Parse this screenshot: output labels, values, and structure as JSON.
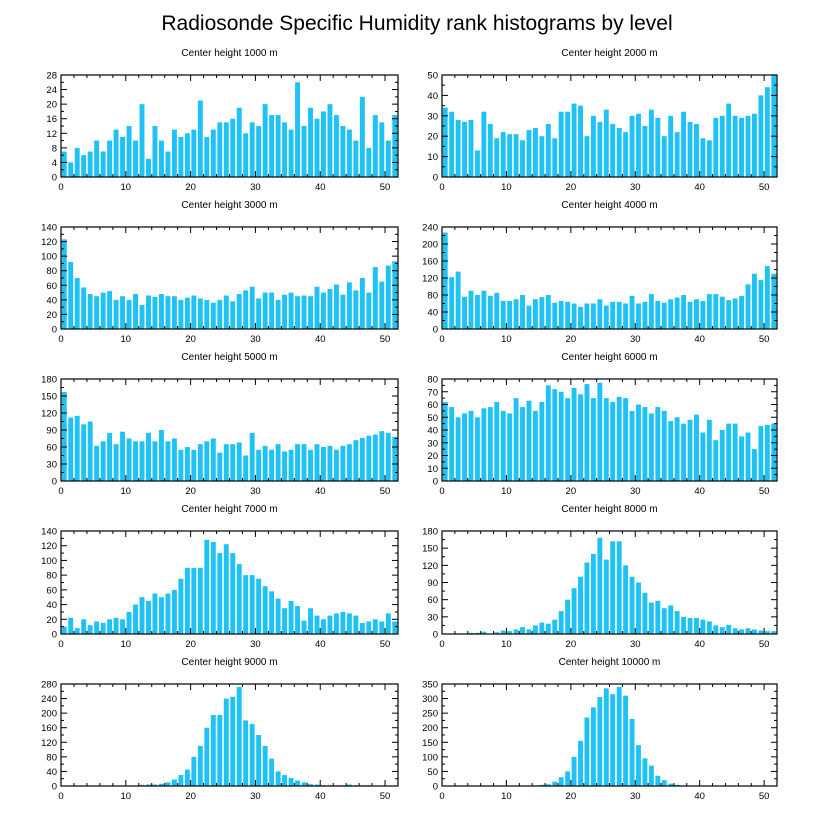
{
  "figure": {
    "title": "Radiosonde Specific Humidity rank histograms by level"
  },
  "colors": {
    "bar": "#1ec2f4",
    "axis": "#000000",
    "background": "#ffffff"
  },
  "chart_data": [
    {
      "type": "bar",
      "title": "Center height 1000 m",
      "xlim": [
        0,
        52
      ],
      "ylim": [
        0,
        28
      ],
      "xticks": [
        0,
        10,
        20,
        30,
        40,
        50
      ],
      "yticks": [
        0,
        4,
        8,
        12,
        16,
        20,
        24,
        28
      ],
      "values": [
        7,
        4,
        8,
        6,
        7,
        10,
        7,
        10,
        13,
        11,
        14,
        10,
        20,
        5,
        14,
        10,
        7,
        13,
        11,
        12,
        13,
        21,
        11,
        13,
        15,
        15,
        16,
        19,
        12,
        15,
        14,
        20,
        17,
        17,
        15,
        13,
        26,
        14,
        19,
        16,
        18,
        20,
        17,
        14,
        13,
        10,
        22,
        8,
        17,
        15,
        10,
        17
      ]
    },
    {
      "type": "bar",
      "title": "Center height 2000 m",
      "xlim": [
        0,
        52
      ],
      "ylim": [
        0,
        50
      ],
      "xticks": [
        0,
        10,
        20,
        30,
        40,
        50
      ],
      "yticks": [
        0,
        10,
        20,
        30,
        40,
        50
      ],
      "values": [
        34,
        32,
        28,
        27,
        28,
        13,
        32,
        26,
        19,
        22,
        21,
        21,
        18,
        23,
        24,
        20,
        26,
        19,
        32,
        32,
        36,
        35,
        20,
        30,
        27,
        33,
        26,
        24,
        22,
        30,
        31,
        25,
        33,
        29,
        20,
        30,
        22,
        32,
        27,
        26,
        19,
        18,
        29,
        30,
        36,
        30,
        29,
        30,
        31,
        40,
        44,
        50
      ]
    },
    {
      "type": "bar",
      "title": "Center height 3000 m",
      "xlim": [
        0,
        52
      ],
      "ylim": [
        0,
        140
      ],
      "xticks": [
        0,
        10,
        20,
        30,
        40,
        50
      ],
      "yticks": [
        0,
        20,
        40,
        60,
        80,
        100,
        120,
        140
      ],
      "values": [
        123,
        92,
        70,
        57,
        48,
        45,
        50,
        52,
        40,
        45,
        40,
        48,
        33,
        46,
        44,
        48,
        45,
        45,
        40,
        43,
        46,
        42,
        40,
        36,
        40,
        46,
        38,
        48,
        53,
        58,
        42,
        50,
        50,
        40,
        47,
        50,
        45,
        46,
        45,
        58,
        50,
        55,
        61,
        47,
        64,
        53,
        70,
        50,
        85,
        65,
        87,
        93
      ]
    },
    {
      "type": "bar",
      "title": "Center height 4000 m",
      "xlim": [
        0,
        52
      ],
      "ylim": [
        0,
        240
      ],
      "xticks": [
        0,
        10,
        20,
        30,
        40,
        50
      ],
      "yticks": [
        0,
        40,
        80,
        120,
        160,
        200,
        240
      ],
      "values": [
        227,
        122,
        135,
        76,
        90,
        80,
        90,
        78,
        85,
        66,
        66,
        70,
        80,
        55,
        70,
        75,
        80,
        62,
        66,
        64,
        60,
        52,
        60,
        60,
        70,
        55,
        64,
        64,
        60,
        78,
        60,
        64,
        82,
        66,
        62,
        70,
        74,
        80,
        64,
        70,
        66,
        82,
        82,
        76,
        68,
        72,
        78,
        105,
        130,
        115,
        148,
        130
      ]
    },
    {
      "type": "bar",
      "title": "Center height 5000 m",
      "xlim": [
        0,
        52
      ],
      "ylim": [
        0,
        180
      ],
      "xticks": [
        0,
        10,
        20,
        30,
        40,
        50
      ],
      "yticks": [
        0,
        30,
        60,
        90,
        120,
        150,
        180
      ],
      "values": [
        157,
        112,
        115,
        100,
        105,
        62,
        70,
        85,
        65,
        87,
        75,
        70,
        70,
        85,
        70,
        90,
        70,
        75,
        55,
        60,
        55,
        65,
        70,
        75,
        50,
        65,
        65,
        68,
        45,
        85,
        55,
        62,
        55,
        65,
        52,
        55,
        65,
        65,
        55,
        65,
        60,
        62,
        55,
        62,
        65,
        72,
        76,
        80,
        82,
        88,
        85,
        78
      ]
    },
    {
      "type": "bar",
      "title": "Center height 6000 m",
      "xlim": [
        0,
        52
      ],
      "ylim": [
        0,
        80
      ],
      "xticks": [
        0,
        10,
        20,
        30,
        40,
        50
      ],
      "yticks": [
        0,
        10,
        20,
        30,
        40,
        50,
        60,
        70,
        80
      ],
      "values": [
        62,
        58,
        50,
        53,
        55,
        50,
        57,
        58,
        62,
        55,
        53,
        65,
        58,
        63,
        55,
        62,
        75,
        72,
        70,
        65,
        73,
        68,
        76,
        65,
        77,
        65,
        62,
        66,
        65,
        55,
        60,
        58,
        53,
        58,
        55,
        47,
        50,
        45,
        48,
        52,
        38,
        48,
        32,
        40,
        45,
        45,
        35,
        38,
        25,
        43,
        44,
        45
      ]
    },
    {
      "type": "bar",
      "title": "Center height 7000 m",
      "xlim": [
        0,
        52
      ],
      "ylim": [
        0,
        140
      ],
      "xticks": [
        0,
        10,
        20,
        30,
        40,
        50
      ],
      "yticks": [
        0,
        20,
        40,
        60,
        80,
        100,
        120,
        140
      ],
      "values": [
        10,
        22,
        8,
        20,
        12,
        17,
        15,
        20,
        22,
        20,
        30,
        40,
        50,
        45,
        55,
        50,
        55,
        60,
        75,
        90,
        90,
        90,
        128,
        125,
        110,
        122,
        110,
        95,
        80,
        80,
        75,
        65,
        58,
        48,
        35,
        45,
        38,
        18,
        35,
        25,
        20,
        25,
        28,
        30,
        28,
        25,
        15,
        17,
        20,
        17,
        28,
        17
      ]
    },
    {
      "type": "bar",
      "title": "Center height 8000 m",
      "xlim": [
        0,
        52
      ],
      "ylim": [
        0,
        180
      ],
      "xticks": [
        0,
        10,
        20,
        30,
        40,
        50
      ],
      "yticks": [
        0,
        30,
        60,
        90,
        120,
        150,
        180
      ],
      "values": [
        0,
        0,
        0,
        0,
        2,
        2,
        4,
        0,
        3,
        6,
        5,
        8,
        12,
        8,
        15,
        20,
        18,
        25,
        40,
        60,
        80,
        100,
        125,
        140,
        168,
        130,
        162,
        162,
        120,
        100,
        90,
        72,
        55,
        58,
        45,
        50,
        40,
        30,
        28,
        28,
        25,
        22,
        15,
        12,
        16,
        10,
        8,
        10,
        8,
        6,
        5,
        5
      ]
    },
    {
      "type": "bar",
      "title": "Center height 9000 m",
      "xlim": [
        0,
        52
      ],
      "ylim": [
        0,
        280
      ],
      "xticks": [
        0,
        10,
        20,
        30,
        40,
        50
      ],
      "yticks": [
        0,
        40,
        80,
        120,
        160,
        200,
        240,
        280
      ],
      "values": [
        0,
        0,
        0,
        0,
        0,
        0,
        0,
        0,
        0,
        0,
        0,
        0,
        3,
        4,
        4,
        6,
        10,
        18,
        30,
        45,
        80,
        110,
        160,
        195,
        195,
        240,
        245,
        272,
        180,
        170,
        140,
        110,
        75,
        40,
        30,
        22,
        15,
        10,
        5,
        4,
        2,
        2,
        2,
        2,
        4,
        2,
        2,
        2,
        0,
        0,
        0,
        0
      ]
    },
    {
      "type": "bar",
      "title": "Center height 10000 m",
      "xlim": [
        0,
        52
      ],
      "ylim": [
        0,
        350
      ],
      "xticks": [
        0,
        10,
        20,
        30,
        40,
        50
      ],
      "yticks": [
        0,
        50,
        100,
        150,
        200,
        250,
        300,
        350
      ],
      "values": [
        0,
        0,
        0,
        0,
        0,
        0,
        0,
        0,
        0,
        0,
        0,
        0,
        0,
        0,
        2,
        4,
        6,
        15,
        30,
        50,
        100,
        155,
        235,
        270,
        305,
        335,
        315,
        340,
        310,
        230,
        140,
        95,
        70,
        35,
        20,
        8,
        4,
        2,
        1,
        1,
        1,
        0,
        0,
        0,
        0,
        0,
        0,
        0,
        0,
        0,
        0,
        0
      ]
    }
  ]
}
